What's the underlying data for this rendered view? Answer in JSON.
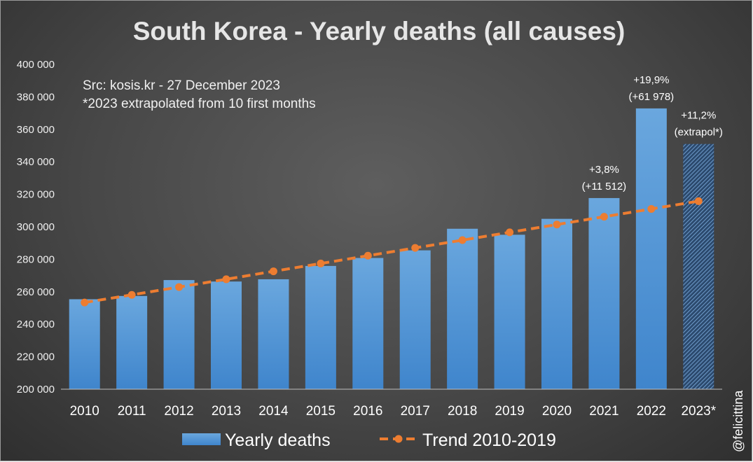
{
  "chart_data": {
    "type": "bar",
    "title": "South Korea - Yearly deaths (all causes)",
    "notes": [
      "Src: kosis.kr - 27 December 2023",
      "*2023 extrapolated from 10 first months"
    ],
    "categories": [
      "2010",
      "2011",
      "2012",
      "2013",
      "2014",
      "2015",
      "2016",
      "2017",
      "2018",
      "2019",
      "2020",
      "2021",
      "2022",
      "2023*"
    ],
    "ylim": [
      200000,
      400000
    ],
    "yticks": [
      "200 000",
      "220 000",
      "240 000",
      "260 000",
      "280 000",
      "300 000",
      "320 000",
      "340 000",
      "360 000",
      "380 000",
      "400 000"
    ],
    "series": [
      {
        "name": "Yearly deaths",
        "kind": "bar",
        "color": "#5b9bd5",
        "values": [
          255400,
          257400,
          267200,
          266300,
          267700,
          275900,
          280800,
          285500,
          298800,
          295100,
          304900,
          317700,
          372900,
          351000
        ],
        "hatched_categories": [
          "2023*"
        ]
      },
      {
        "name": "Trend 2010-2019",
        "kind": "line",
        "style": "dashed",
        "color": "#ed7d31",
        "values": [
          253400,
          258100,
          262900,
          267700,
          272600,
          277400,
          282200,
          287000,
          291800,
          296600,
          301400,
          306200,
          311000,
          315800
        ]
      }
    ],
    "annotations": [
      {
        "category": "2021",
        "lines": [
          "+3,8%",
          "(+11 512)"
        ]
      },
      {
        "category": "2022",
        "lines": [
          "+19,9%",
          "(+61 978)"
        ]
      },
      {
        "category": "2023*",
        "lines": [
          "+11,2%",
          "(extrapol*)"
        ]
      }
    ],
    "grid": false,
    "legend_position": "bottom"
  },
  "watermark": "@felicittina"
}
